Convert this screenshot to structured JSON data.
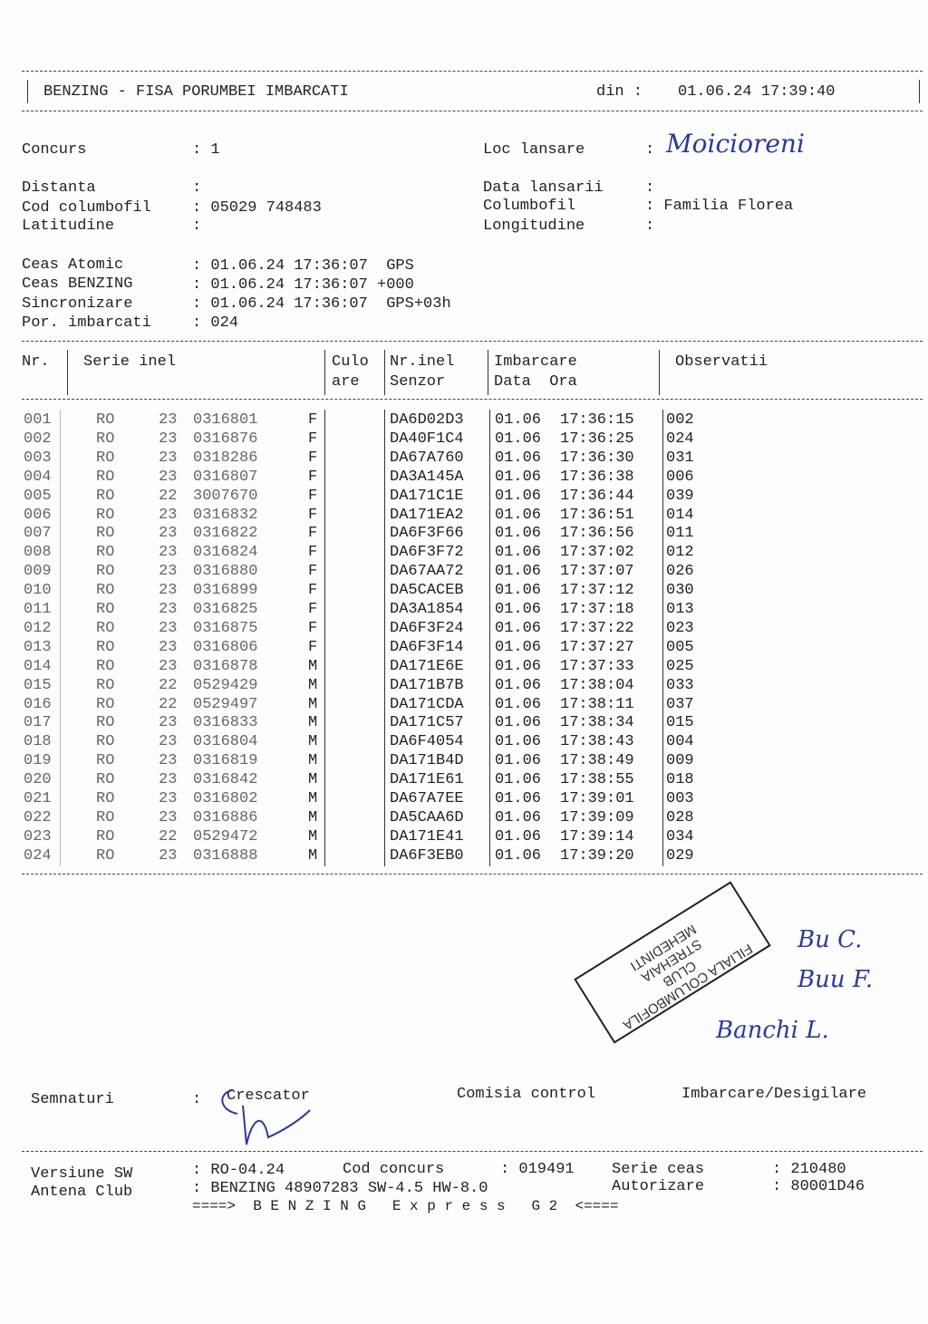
{
  "header": {
    "title": "BENZING - FISA PORUMBEI IMBARCATI",
    "din_label": "din :",
    "din_value": "01.06.24 17:39:40"
  },
  "info": {
    "concurs_label": "Concurs",
    "concurs_value": ": 1",
    "loc_label": "Loc lansare",
    "loc_value": ":",
    "loc_handwritten": "Moicioreni",
    "distanta_label": "Distanta",
    "distanta_value": ":",
    "data_lansarii_label": "Data lansarii",
    "data_lansarii_value": ":",
    "cod_label": "Cod columbofil",
    "cod_value": ": 05029 748483",
    "columbofil_label": "Columbofil",
    "columbofil_value": ": Familia Florea",
    "lat_label": "Latitudine",
    "lat_value": ":",
    "long_label": "Longitudine",
    "long_value": ":",
    "ceas_atomic_label": "Ceas Atomic",
    "ceas_atomic_value": ": 01.06.24 17:36:07  GPS",
    "ceas_benzing_label": "Ceas BENZING",
    "ceas_benzing_value": ": 01.06.24 17:36:07 +000",
    "sync_label": "Sincronizare",
    "sync_value": ": 01.06.24 17:36:07  GPS+03h",
    "por_label": "Por. imbarcati",
    "por_value": ": 024"
  },
  "table": {
    "headers": {
      "nr": "Nr.",
      "serie": "Serie inel",
      "culo1": "Culo",
      "culo2": "are",
      "nrinel1": "Nr.inel",
      "nrinel2": "Senzor",
      "imb1": "Imbarcare",
      "imb2": "Data  Ora",
      "obs": "Observatii"
    },
    "rows": [
      [
        "001",
        "RO",
        "23",
        "0316801",
        "F",
        "DA6D02D3",
        "01.06",
        "17:36:15",
        "002"
      ],
      [
        "002",
        "RO",
        "23",
        "0316876",
        "F",
        "DA40F1C4",
        "01.06",
        "17:36:25",
        "024"
      ],
      [
        "003",
        "RO",
        "23",
        "0318286",
        "F",
        "DA67A760",
        "01.06",
        "17:36:30",
        "031"
      ],
      [
        "004",
        "RO",
        "23",
        "0316807",
        "F",
        "DA3A145A",
        "01.06",
        "17:36:38",
        "006"
      ],
      [
        "005",
        "RO",
        "22",
        "3007670",
        "F",
        "DA171C1E",
        "01.06",
        "17:36:44",
        "039"
      ],
      [
        "006",
        "RO",
        "23",
        "0316832",
        "F",
        "DA171EA2",
        "01.06",
        "17:36:51",
        "014"
      ],
      [
        "007",
        "RO",
        "23",
        "0316822",
        "F",
        "DA6F3F66",
        "01.06",
        "17:36:56",
        "011"
      ],
      [
        "008",
        "RO",
        "23",
        "0316824",
        "F",
        "DA6F3F72",
        "01.06",
        "17:37:02",
        "012"
      ],
      [
        "009",
        "RO",
        "23",
        "0316880",
        "F",
        "DA67AA72",
        "01.06",
        "17:37:07",
        "026"
      ],
      [
        "010",
        "RO",
        "23",
        "0316899",
        "F",
        "DA5CACEB",
        "01.06",
        "17:37:12",
        "030"
      ],
      [
        "011",
        "RO",
        "23",
        "0316825",
        "F",
        "DA3A1854",
        "01.06",
        "17:37:18",
        "013"
      ],
      [
        "012",
        "RO",
        "23",
        "0316875",
        "F",
        "DA6F3F24",
        "01.06",
        "17:37:22",
        "023"
      ],
      [
        "013",
        "RO",
        "23",
        "0316806",
        "F",
        "DA6F3F14",
        "01.06",
        "17:37:27",
        "005"
      ],
      [
        "014",
        "RO",
        "23",
        "0316878",
        "M",
        "DA171E6E",
        "01.06",
        "17:37:33",
        "025"
      ],
      [
        "015",
        "RO",
        "22",
        "0529429",
        "M",
        "DA171B7B",
        "01.06",
        "17:38:04",
        "033"
      ],
      [
        "016",
        "RO",
        "22",
        "0529497",
        "M",
        "DA171CDA",
        "01.06",
        "17:38:11",
        "037"
      ],
      [
        "017",
        "RO",
        "23",
        "0316833",
        "M",
        "DA171C57",
        "01.06",
        "17:38:34",
        "015"
      ],
      [
        "018",
        "RO",
        "23",
        "0316804",
        "M",
        "DA6F4054",
        "01.06",
        "17:38:43",
        "004"
      ],
      [
        "019",
        "RO",
        "23",
        "0316819",
        "M",
        "DA171B4D",
        "01.06",
        "17:38:49",
        "009"
      ],
      [
        "020",
        "RO",
        "23",
        "0316842",
        "M",
        "DA171E61",
        "01.06",
        "17:38:55",
        "018"
      ],
      [
        "021",
        "RO",
        "23",
        "0316802",
        "M",
        "DA67A7EE",
        "01.06",
        "17:39:01",
        "003"
      ],
      [
        "022",
        "RO",
        "23",
        "0316886",
        "M",
        "DA5CAA6D",
        "01.06",
        "17:39:09",
        "028"
      ],
      [
        "023",
        "RO",
        "22",
        "0529472",
        "M",
        "DA171E41",
        "01.06",
        "17:39:14",
        "034"
      ],
      [
        "024",
        "RO",
        "23",
        "0316888",
        "M",
        "DA6F3EB0",
        "01.06",
        "17:39:20",
        "029"
      ]
    ]
  },
  "stamp": {
    "lines": [
      "FILIALA COLUMBOFILA",
      "CLUB",
      "STREHAIA",
      "MEHEDINTI"
    ]
  },
  "signatures": {
    "label": "Semnaturi",
    "colon": ":",
    "crescator": "Crescator",
    "comisia": "Comisia control",
    "imbarcare": "Imbarcare/Desigilare",
    "hand1": "Bu C.",
    "hand2": "Buu F.",
    "hand3": "Banchi L."
  },
  "footer": {
    "versiune_label": "Versiune SW",
    "versiune_value": ": RO-04.24",
    "cod_concurs_label": "Cod concurs",
    "cod_concurs_value": ": 019491",
    "serie_ceas_label": "Serie ceas",
    "serie_ceas_value": ": 210480",
    "antena_label": "Antena Club",
    "antena_value": ": BENZING 48907283 SW-4.5 HW-8.0",
    "autorizare_label": "Autorizare",
    "autorizare_value": ": 80001D46",
    "banner": "====>  B E N Z I N G   E x p r e s s   G 2  <===="
  },
  "colors": {
    "ink": "#222222",
    "handwriting": "#2c3a9a"
  }
}
